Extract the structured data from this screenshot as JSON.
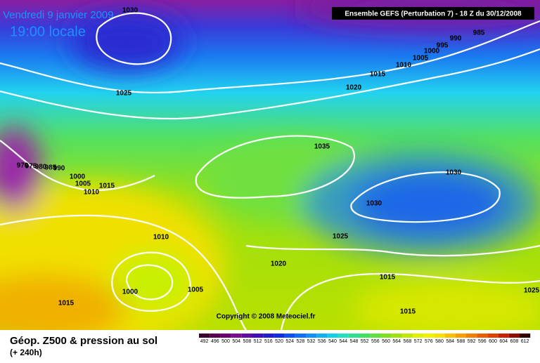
{
  "map": {
    "date": "Vendredi 9 janvier 2009",
    "local_time": "19:00 locale",
    "run_info": "Ensemble GEFS (Perturbation 7)  - 18 Z du 30/12/2008",
    "copyright": "Copyright © 2008 Meteociel.fr",
    "isobar_labels": [
      "1030",
      "985",
      "990",
      "995",
      "1000",
      "1005",
      "1010",
      "1015",
      "1020",
      "1025",
      "1035",
      "1030",
      "1030",
      "1025",
      "1020",
      "1015",
      "1010",
      "1005",
      "1000",
      "1015",
      "1015",
      "1025",
      "970",
      "975",
      "980",
      "985",
      "990",
      "1000",
      "1005",
      "1010",
      "1015"
    ]
  },
  "footer": {
    "title": "Géop. Z500 & pression au sol",
    "lead_time": "(+ 240h)",
    "scale_labels": [
      492,
      496,
      500,
      504,
      508,
      512,
      516,
      520,
      524,
      528,
      532,
      536,
      540,
      544,
      548,
      552,
      556,
      560,
      564,
      568,
      572,
      576,
      580,
      584,
      588,
      592,
      596,
      600,
      604,
      608,
      612
    ]
  }
}
